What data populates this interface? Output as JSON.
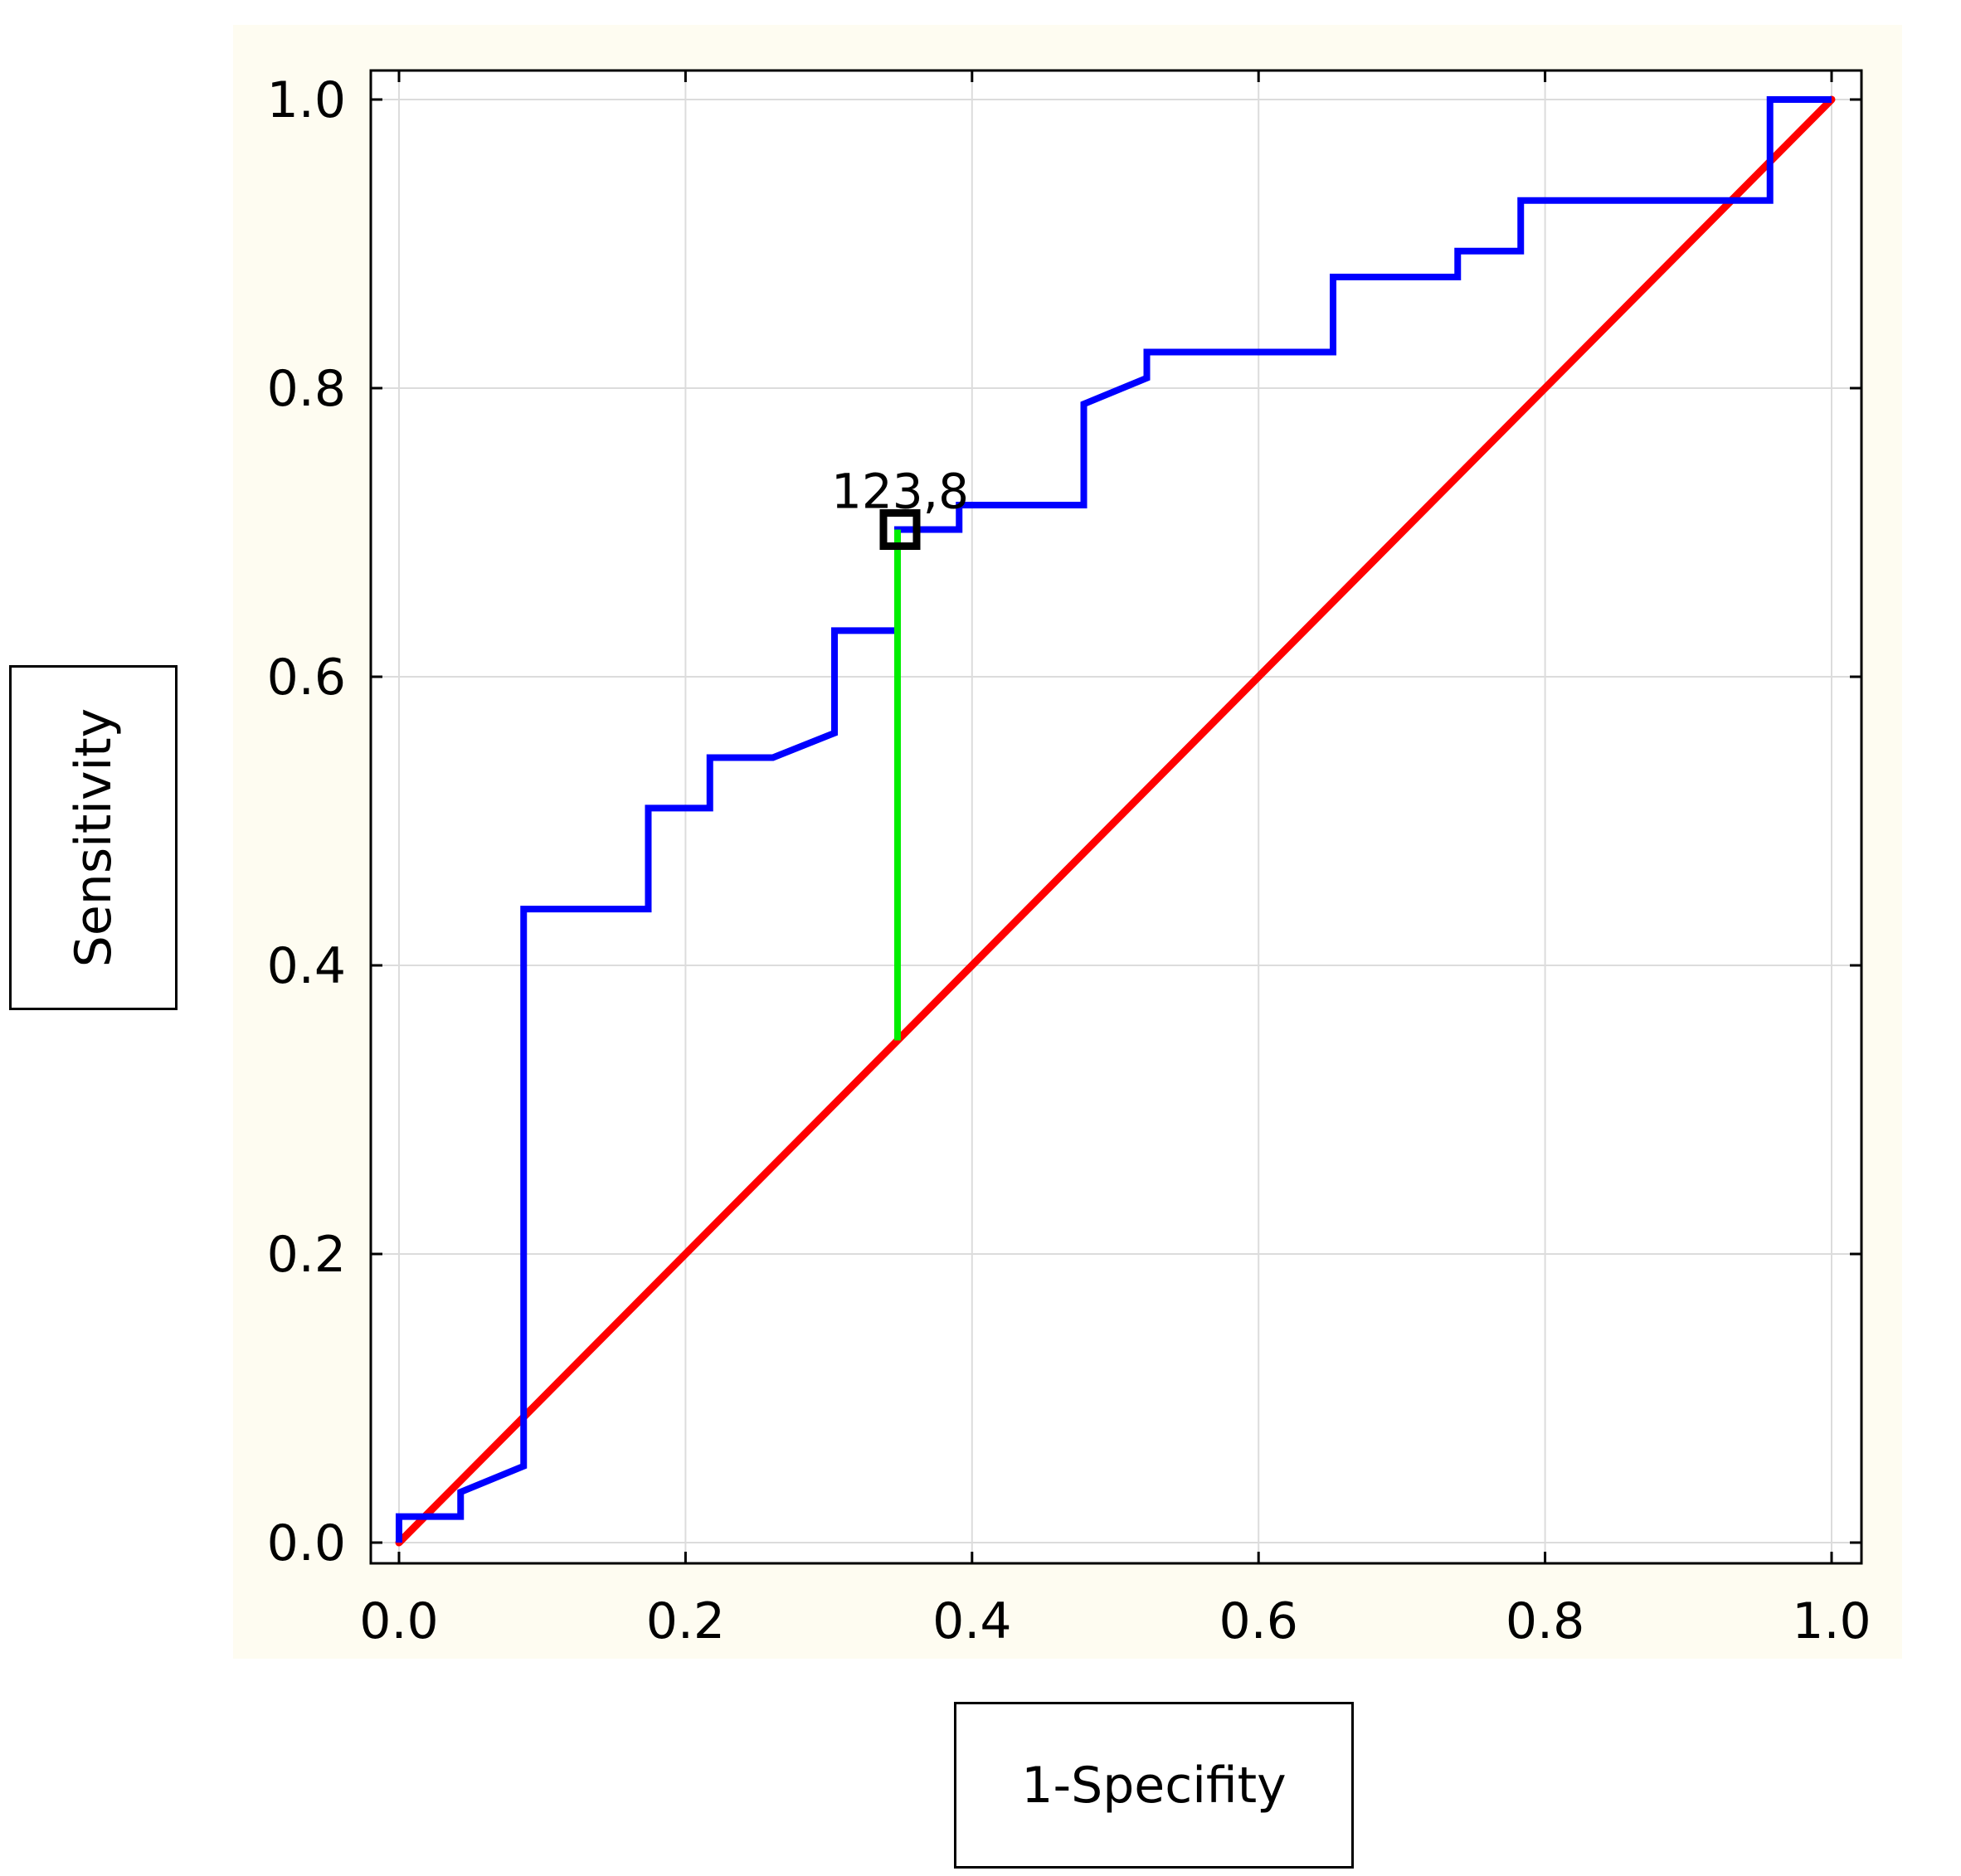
{
  "colors": {
    "panel_background": "#fefcf1",
    "plot_background": "#ffffff",
    "grid": "#dcdcdc",
    "roc_curve": "#0000ff",
    "reference_line": "#ff0000",
    "youden_line": "#00ee00",
    "cutoff_marker": "#000000"
  },
  "chart_data": {
    "type": "line",
    "title": "",
    "xlabel": "1-Specifity",
    "ylabel": "Sensitivity",
    "xlim": [
      0,
      1
    ],
    "ylim": [
      0,
      1
    ],
    "grid": true,
    "x_ticks": [
      "0.0",
      "0.2",
      "0.4",
      "0.6",
      "0.8",
      "1.0"
    ],
    "y_ticks": [
      "0.0",
      "0.2",
      "0.4",
      "0.6",
      "0.8",
      "1.0"
    ],
    "series": [
      {
        "x": [
          0,
          0,
          0.043,
          0.043,
          0.087,
          0.087,
          0.174,
          0.174,
          0.217,
          0.217,
          0.261,
          0.304,
          0.304,
          0.348,
          0.348,
          0.391,
          0.391,
          0.478,
          0.478,
          0.522,
          0.522,
          0.652,
          0.652,
          0.739,
          0.739,
          0.783,
          0.783,
          0.957,
          0.957,
          1.0
        ],
        "y": [
          0,
          0.018,
          0.018,
          0.035,
          0.053,
          0.439,
          0.439,
          0.509,
          0.509,
          0.544,
          0.544,
          0.561,
          0.632,
          0.632,
          0.702,
          0.702,
          0.719,
          0.719,
          0.789,
          0.807,
          0.825,
          0.825,
          0.877,
          0.877,
          0.895,
          0.895,
          0.93,
          0.93,
          1.0,
          1.0
        ]
      },
      {
        "x": [
          0,
          1
        ],
        "y": [
          0,
          1
        ]
      }
    ],
    "youden_segment": {
      "x": 0.348,
      "y_from": 0.348,
      "y_to": 0.702
    },
    "annotations": [
      {
        "text": "123,8",
        "x": 0.348,
        "y": 0.702
      }
    ]
  }
}
